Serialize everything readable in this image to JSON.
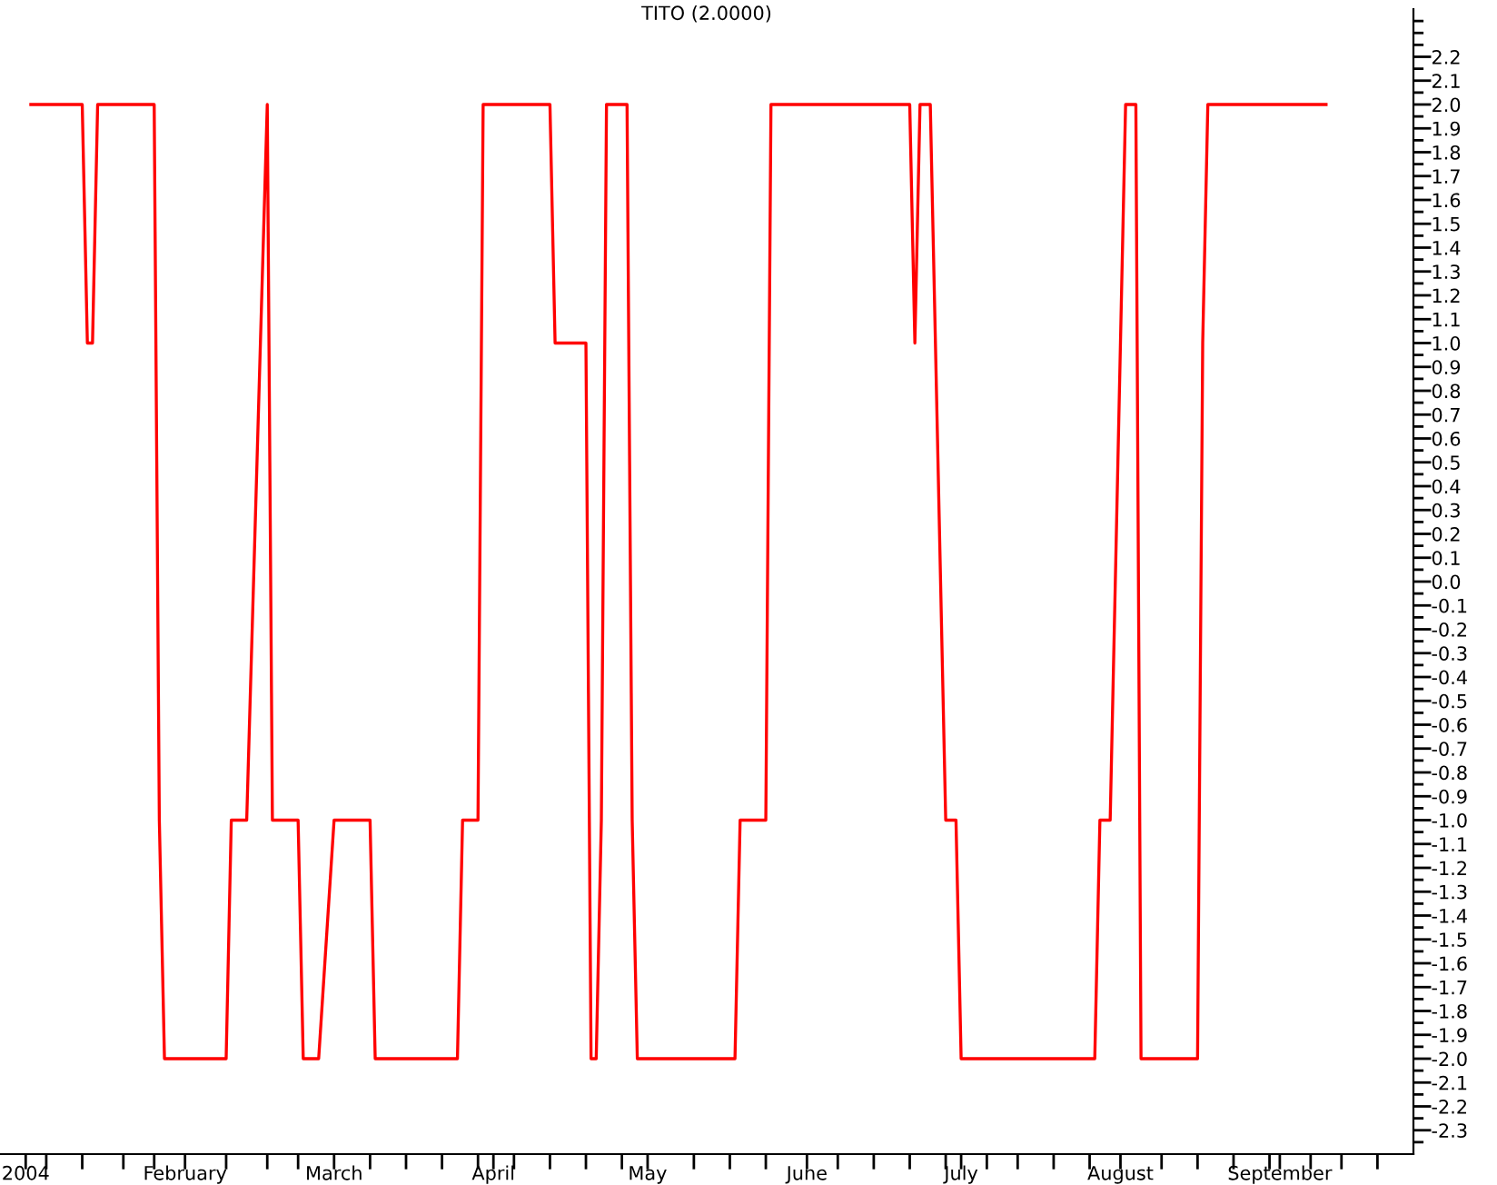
{
  "chart_data": {
    "type": "line",
    "title": "TITO (2.0000)",
    "x": [
      "2004-01-02",
      "2004-01-12",
      "2004-01-13",
      "2004-01-14",
      "2004-01-15",
      "2004-01-26",
      "2004-01-27",
      "2004-01-28",
      "2004-02-09",
      "2004-02-10",
      "2004-02-13",
      "2004-02-17",
      "2004-02-18",
      "2004-02-23",
      "2004-02-24",
      "2004-02-27",
      "2004-03-01",
      "2004-03-08",
      "2004-03-09",
      "2004-03-25",
      "2004-03-26",
      "2004-03-29",
      "2004-03-30",
      "2004-04-12",
      "2004-04-13",
      "2004-04-19",
      "2004-04-20",
      "2004-04-21",
      "2004-04-22",
      "2004-04-23",
      "2004-04-27",
      "2004-04-28",
      "2004-04-29",
      "2004-05-18",
      "2004-05-19",
      "2004-05-24",
      "2004-05-25",
      "2004-06-21",
      "2004-06-22",
      "2004-06-23",
      "2004-06-25",
      "2004-06-28",
      "2004-06-30",
      "2004-07-01",
      "2004-07-27",
      "2004-07-28",
      "2004-07-30",
      "2004-08-02",
      "2004-08-04",
      "2004-08-05",
      "2004-08-16",
      "2004-08-17",
      "2004-08-18",
      "2004-09-10"
    ],
    "series": [
      {
        "color": "#ff0000",
        "values": [
          2.0,
          2.0,
          1.0,
          1.0,
          2.0,
          2.0,
          -1.0,
          -2.0,
          -2.0,
          -1.0,
          -1.0,
          2.0,
          -1.0,
          -1.0,
          -2.0,
          -2.0,
          -1.0,
          -1.0,
          -2.0,
          -2.0,
          -1.0,
          -1.0,
          2.0,
          2.0,
          1.0,
          1.0,
          -2.0,
          -2.0,
          -1.0,
          2.0,
          2.0,
          -1.0,
          -2.0,
          -2.0,
          -1.0,
          -1.0,
          2.0,
          2.0,
          1.0,
          2.0,
          2.0,
          -1.0,
          -1.0,
          -2.0,
          -2.0,
          -1.0,
          -1.0,
          2.0,
          2.0,
          -2.0,
          -2.0,
          1.0,
          2.0,
          2.0
        ]
      }
    ],
    "xlim": [
      "2003-12-27",
      "2004-09-27"
    ],
    "xticks": [
      {
        "value": "2004-01-01",
        "label": "2004"
      },
      {
        "value": "2004-01-05",
        "label": null
      },
      {
        "value": "2004-01-12",
        "label": null
      },
      {
        "value": "2004-01-20",
        "label": null
      },
      {
        "value": "2004-01-26",
        "label": null
      },
      {
        "value": "2004-02-01",
        "label": "February"
      },
      {
        "value": "2004-02-09",
        "label": null
      },
      {
        "value": "2004-02-17",
        "label": null
      },
      {
        "value": "2004-02-23",
        "label": null
      },
      {
        "value": "2004-03-01",
        "label": "March"
      },
      {
        "value": "2004-03-08",
        "label": null
      },
      {
        "value": "2004-03-15",
        "label": null
      },
      {
        "value": "2004-03-22",
        "label": null
      },
      {
        "value": "2004-03-29",
        "label": null
      },
      {
        "value": "2004-04-01",
        "label": "April"
      },
      {
        "value": "2004-04-05",
        "label": null
      },
      {
        "value": "2004-04-12",
        "label": null
      },
      {
        "value": "2004-04-19",
        "label": null
      },
      {
        "value": "2004-04-26",
        "label": null
      },
      {
        "value": "2004-05-01",
        "label": "May"
      },
      {
        "value": "2004-05-10",
        "label": null
      },
      {
        "value": "2004-05-17",
        "label": null
      },
      {
        "value": "2004-05-24",
        "label": null
      },
      {
        "value": "2004-06-01",
        "label": "June"
      },
      {
        "value": "2004-06-07",
        "label": null
      },
      {
        "value": "2004-06-14",
        "label": null
      },
      {
        "value": "2004-06-21",
        "label": null
      },
      {
        "value": "2004-06-28",
        "label": null
      },
      {
        "value": "2004-07-01",
        "label": "July"
      },
      {
        "value": "2004-07-06",
        "label": null
      },
      {
        "value": "2004-07-12",
        "label": null
      },
      {
        "value": "2004-07-19",
        "label": null
      },
      {
        "value": "2004-07-26",
        "label": null
      },
      {
        "value": "2004-08-01",
        "label": "August"
      },
      {
        "value": "2004-08-09",
        "label": null
      },
      {
        "value": "2004-08-16",
        "label": null
      },
      {
        "value": "2004-08-23",
        "label": null
      },
      {
        "value": "2004-08-30",
        "label": null
      },
      {
        "value": "2004-09-01",
        "label": "September"
      },
      {
        "value": "2004-09-07",
        "label": null
      },
      {
        "value": "2004-09-13",
        "label": null
      },
      {
        "value": "2004-09-20",
        "label": null
      }
    ],
    "ylim": [
      -2.4,
      2.4
    ],
    "yticks": [
      -2.3,
      -2.2,
      -2.1,
      {
        "value": -2,
        "label": "-2.0"
      },
      -1.9,
      -1.8,
      -1.7,
      -1.6,
      -1.5,
      -1.4,
      -1.3,
      -1.2,
      -1.1,
      {
        "value": -1,
        "label": "-1.0"
      },
      -0.9,
      -0.8,
      -0.7,
      -0.6,
      -0.5,
      -0.4,
      -0.3,
      -0.2,
      -0.1,
      {
        "value": 0,
        "label": "0.0"
      },
      0.1,
      0.2,
      0.3,
      0.4,
      0.5,
      0.6,
      0.7,
      0.8,
      0.9,
      {
        "value": 1,
        "label": "1.0"
      },
      1.1,
      1.2,
      1.3,
      1.4,
      1.5,
      1.6,
      1.7,
      1.8,
      1.9,
      {
        "value": 2,
        "label": "2.0"
      },
      2.1,
      2.2,
      {
        "value": 2.3,
        "label": null
      },
      {
        "value": -2.35,
        "label": null
      },
      {
        "value": -2.25,
        "label": null
      },
      {
        "value": -2.15,
        "label": null
      },
      {
        "value": -2.05,
        "label": null
      },
      {
        "value": -1.95,
        "label": null
      },
      {
        "value": -1.85,
        "label": null
      },
      {
        "value": -1.75,
        "label": null
      },
      {
        "value": -1.65,
        "label": null
      },
      {
        "value": -1.55,
        "label": null
      },
      {
        "value": -1.45,
        "label": null
      },
      {
        "value": -1.35,
        "label": null
      },
      {
        "value": -1.25,
        "label": null
      },
      {
        "value": -1.15,
        "label": null
      },
      {
        "value": -1.05,
        "label": null
      },
      {
        "value": -0.95,
        "label": null
      },
      {
        "value": -0.85,
        "label": null
      },
      {
        "value": -0.75,
        "label": null
      },
      {
        "value": -0.65,
        "label": null
      },
      {
        "value": -0.55,
        "label": null
      },
      {
        "value": -0.45,
        "label": null
      },
      {
        "value": -0.35,
        "label": null
      },
      {
        "value": -0.25,
        "label": null
      },
      {
        "value": -0.15,
        "label": null
      },
      {
        "value": -0.05,
        "label": null
      },
      {
        "value": 0.05,
        "label": null
      },
      {
        "value": 0.15,
        "label": null
      },
      {
        "value": 0.25,
        "label": null
      },
      {
        "value": 0.35,
        "label": null
      },
      {
        "value": 0.45,
        "label": null
      },
      {
        "value": 0.55,
        "label": null
      },
      {
        "value": 0.65,
        "label": null
      },
      {
        "value": 0.75,
        "label": null
      },
      {
        "value": 0.85,
        "label": null
      },
      {
        "value": 0.95,
        "label": null
      },
      {
        "value": 1.05,
        "label": null
      },
      {
        "value": 1.15,
        "label": null
      },
      {
        "value": 1.25,
        "label": null
      },
      {
        "value": 1.35,
        "label": null
      },
      {
        "value": 1.45,
        "label": null
      },
      {
        "value": 1.55,
        "label": null
      },
      {
        "value": 1.65,
        "label": null
      },
      {
        "value": 1.75,
        "label": null
      },
      {
        "value": 1.85,
        "label": null
      },
      {
        "value": 1.95,
        "label": null
      },
      {
        "value": 2.05,
        "label": null
      },
      {
        "value": 2.15,
        "label": null
      },
      {
        "value": 2.25,
        "label": null
      },
      {
        "value": 2.35,
        "label": null
      }
    ],
    "marker": "none",
    "line_style": "solid"
  }
}
